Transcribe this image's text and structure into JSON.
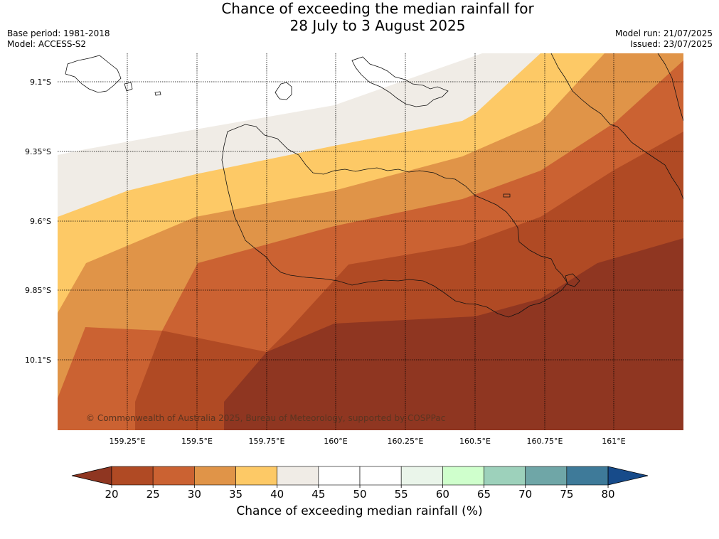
{
  "title": {
    "line1": "Chance of exceeding the median rainfall for",
    "line2": "28 July to 3 August 2025"
  },
  "meta": {
    "base_period": "Base period: 1981-2018",
    "model": "Model: ACCESS-S2",
    "model_run": "Model run: 21/07/2025",
    "issued": "Issued: 23/07/2025"
  },
  "map": {
    "lon_ticks": [
      "159.25°E",
      "159.5°E",
      "159.75°E",
      "160°E",
      "160.25°E",
      "160.5°E",
      "160.75°E",
      "161°E"
    ],
    "lat_ticks": [
      "9.1°S",
      "9.35°S",
      "9.6°S",
      "9.85°S",
      "10.1°S"
    ],
    "lon_range": [
      159.0,
      161.25
    ],
    "lat_range": [
      -10.35,
      -9.0
    ],
    "copyright": "© Commonwealth of Australia 2025, Bureau of Meteorology, supported by COSPPac"
  },
  "colorbar": {
    "ticks": [
      "20",
      "25",
      "30",
      "35",
      "40",
      "45",
      "50",
      "55",
      "60",
      "65",
      "70",
      "75",
      "80"
    ],
    "colors": [
      "#b04a24",
      "#cb6232",
      "#e09448",
      "#fdc966",
      "#f0ece6",
      "#ffffff",
      "#ffffff",
      "#eaf5ea",
      "#cfffcc",
      "#9dd1bb",
      "#6fa6a7",
      "#3e7a99"
    ],
    "under_color": "#8f3621",
    "over_color": "#174b8a",
    "label": "Chance of exceeding median rainfall (%)"
  },
  "chart_data": {
    "type": "heatmap",
    "title": "Chance of exceeding the median rainfall for 28 July to 3 August 2025",
    "xlabel": "",
    "ylabel": "",
    "x_ticks": [
      159.25,
      159.5,
      159.75,
      160.0,
      160.25,
      160.5,
      160.75,
      161.0
    ],
    "y_ticks": [
      -9.1,
      -9.35,
      -9.6,
      -9.85,
      -10.1
    ],
    "xlim": [
      159.0,
      161.25
    ],
    "ylim": [
      -10.35,
      -9.0
    ],
    "levels": [
      20,
      25,
      30,
      35,
      40,
      45,
      50,
      55,
      60,
      65,
      70,
      75,
      80
    ],
    "colorbar_extend": "both",
    "pattern": "Chance increases from southeast (below 20%) to northwest (40-50%)",
    "grid": true
  }
}
